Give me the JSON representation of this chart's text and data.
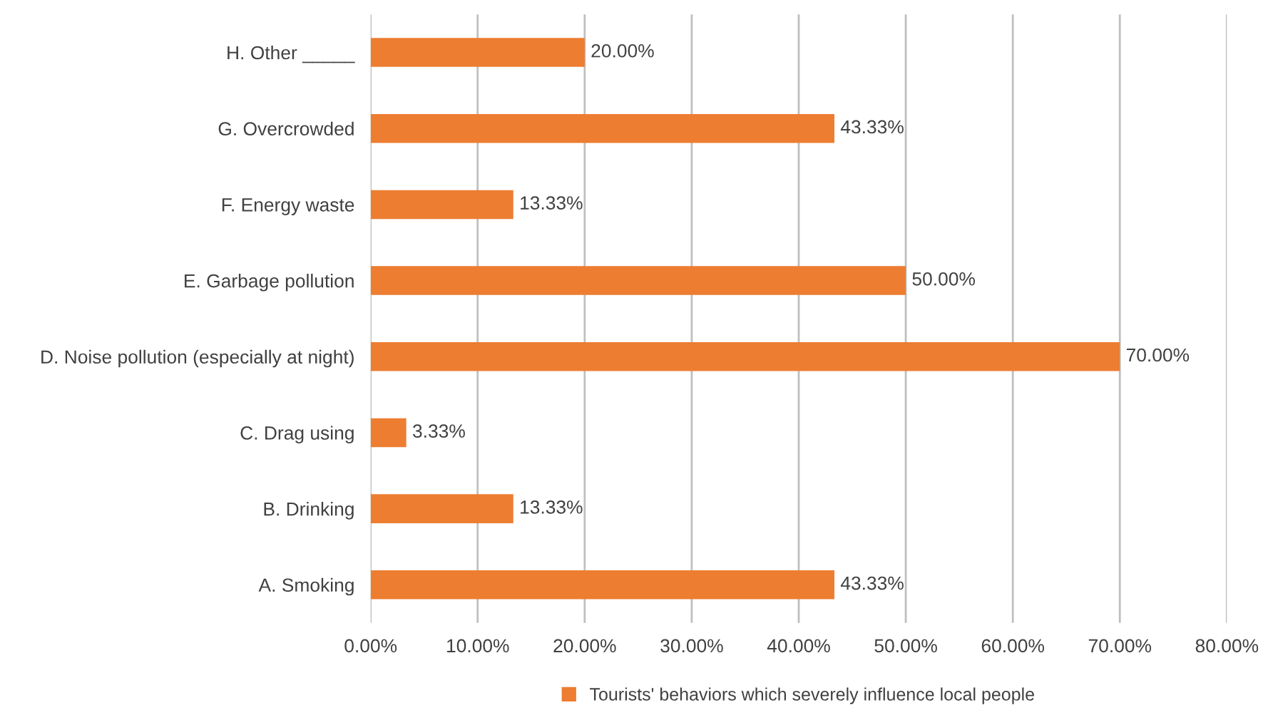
{
  "chart_data": {
    "type": "bar",
    "orientation": "horizontal",
    "categories": [
      "H. Other _____",
      "G. Overcrowded",
      "F. Energy waste",
      "E. Garbage pollution",
      "D. Noise pollution (especially at night)",
      "C. Drag using",
      "B. Drinking",
      "A. Smoking"
    ],
    "series": [
      {
        "name": "Tourists' behaviors which severely influence local people",
        "color": "#ed7d31",
        "values": [
          20,
          43.33,
          13.33,
          50,
          70,
          3.33,
          13.33,
          43.33
        ],
        "value_labels": [
          "20.00%",
          "43.33%",
          "13.33%",
          "50.00%",
          "70.00%",
          "3.33%",
          "13.33%",
          "43.33%"
        ]
      }
    ],
    "xlim": [
      0,
      80
    ],
    "xticks": [
      {
        "value": 0,
        "label": "0.00%"
      },
      {
        "value": 10,
        "label": "10.00%"
      },
      {
        "value": 20,
        "label": "20.00%"
      },
      {
        "value": 30,
        "label": "30.00%"
      },
      {
        "value": 40,
        "label": "40.00%"
      },
      {
        "value": 50,
        "label": "50.00%"
      },
      {
        "value": 60,
        "label": "60.00%"
      },
      {
        "value": 70,
        "label": "70.00%"
      },
      {
        "value": 80,
        "label": "80.00%"
      }
    ],
    "grid": "x",
    "legend": "bottom"
  }
}
